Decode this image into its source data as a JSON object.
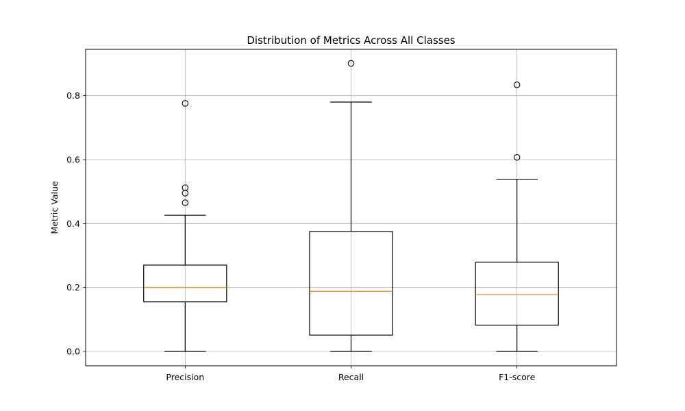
{
  "chart_data": {
    "type": "box",
    "title": "Distribution of Metrics Across All Classes",
    "xlabel": "",
    "ylabel": "Metric Value",
    "categories": [
      "Precision",
      "Recall",
      "F1-score"
    ],
    "yticks": [
      "0.0",
      "0.2",
      "0.4",
      "0.6",
      "0.8"
    ],
    "ylim": [
      -0.045,
      0.945
    ],
    "grid": true,
    "boxes": [
      {
        "name": "Precision",
        "whisker_low": 0.0,
        "q1": 0.155,
        "median": 0.2,
        "q3": 0.27,
        "whisker_high": 0.426,
        "outliers": [
          0.465,
          0.495,
          0.512,
          0.776
        ]
      },
      {
        "name": "Recall",
        "whisker_low": 0.0,
        "q1": 0.051,
        "median": 0.188,
        "q3": 0.375,
        "whisker_high": 0.78,
        "outliers": [
          0.901
        ]
      },
      {
        "name": "F1-score",
        "whisker_low": 0.0,
        "q1": 0.082,
        "median": 0.178,
        "q3": 0.279,
        "whisker_high": 0.538,
        "outliers": [
          0.607,
          0.834
        ]
      }
    ],
    "colors": {
      "box": "#000000",
      "median": "#ff7f0e",
      "grid": "#b0b0b0"
    }
  }
}
